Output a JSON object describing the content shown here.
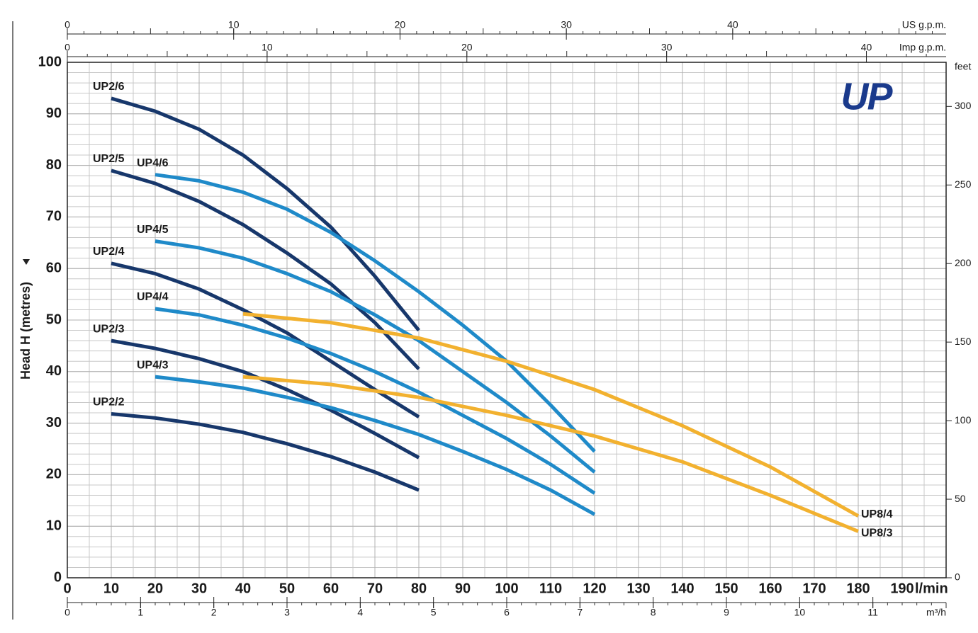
{
  "chart_data": {
    "type": "line",
    "y_label": "Head H  (metres)",
    "x_unit": "l/min",
    "logo": "UP",
    "xlim": [
      0,
      200
    ],
    "xticks": [
      0,
      10,
      20,
      30,
      40,
      50,
      60,
      70,
      80,
      90,
      100,
      110,
      120,
      130,
      140,
      150,
      160,
      170,
      180,
      190
    ],
    "ylim": [
      0,
      100
    ],
    "yticks": [
      0,
      10,
      20,
      30,
      40,
      50,
      60,
      70,
      80,
      90,
      100
    ],
    "y2_label": "feet",
    "y2lim": [
      0,
      328.08
    ],
    "y2ticks": [
      0,
      50,
      100,
      150,
      200,
      250,
      300
    ],
    "grid": true,
    "grid_minor_xstep": 5,
    "grid_minor_ystep": 2,
    "extra_x_axes": [
      {
        "label": "US g.p.m.",
        "position": "top",
        "lim": [
          0,
          52.83
        ],
        "ticks": [
          0,
          10,
          20,
          30,
          40
        ]
      },
      {
        "label": "Imp g.p.m.",
        "position": "top",
        "lim": [
          0,
          43.99
        ],
        "ticks": [
          0,
          10,
          20,
          30,
          40
        ]
      },
      {
        "label": "m³/h",
        "position": "bottom",
        "lim": [
          0,
          12
        ],
        "ticks": [
          0,
          1,
          2,
          3,
          4,
          5,
          6,
          7,
          8,
          9,
          10,
          11
        ]
      }
    ],
    "series": [
      {
        "name": "UP2/6",
        "color": "#17376b",
        "x": [
          10,
          20,
          30,
          40,
          50,
          60,
          70,
          80
        ],
        "values": [
          93,
          90.5,
          87,
          82,
          75.5,
          68,
          58.5,
          48
        ]
      },
      {
        "name": "UP2/5",
        "color": "#17376b",
        "x": [
          10,
          20,
          30,
          40,
          50,
          60,
          70,
          80
        ],
        "values": [
          79,
          76.5,
          73,
          68.5,
          63,
          57,
          49.5,
          40.5
        ]
      },
      {
        "name": "UP2/4",
        "color": "#17376b",
        "x": [
          10,
          20,
          30,
          40,
          50,
          60,
          70,
          80
        ],
        "values": [
          61,
          59,
          56,
          52,
          47.5,
          42,
          36.5,
          31.2
        ]
      },
      {
        "name": "UP2/3",
        "color": "#17376b",
        "x": [
          10,
          20,
          30,
          40,
          50,
          60,
          70,
          80
        ],
        "values": [
          46,
          44.5,
          42.5,
          40,
          36.5,
          32.5,
          28,
          23.3
        ]
      },
      {
        "name": "UP2/2",
        "color": "#17376b",
        "x": [
          10,
          20,
          30,
          40,
          50,
          60,
          70,
          80
        ],
        "values": [
          31.8,
          31,
          29.8,
          28.2,
          26,
          23.5,
          20.5,
          17
        ]
      },
      {
        "name": "UP4/6",
        "color": "#1f8ac9",
        "x": [
          20,
          30,
          40,
          50,
          60,
          70,
          80,
          90,
          100,
          110,
          120
        ],
        "values": [
          78.2,
          77,
          74.8,
          71.5,
          67,
          61.5,
          55.5,
          49,
          42,
          33.5,
          24.5
        ]
      },
      {
        "name": "UP4/5",
        "color": "#1f8ac9",
        "x": [
          20,
          30,
          40,
          50,
          60,
          70,
          80,
          90,
          100,
          110,
          120
        ],
        "values": [
          65.3,
          64,
          62,
          59,
          55.5,
          51,
          46,
          40,
          34,
          27.5,
          20.5
        ]
      },
      {
        "name": "UP4/4",
        "color": "#1f8ac9",
        "x": [
          20,
          30,
          40,
          50,
          60,
          70,
          80,
          90,
          100,
          110,
          120
        ],
        "values": [
          52.2,
          51,
          49,
          46.5,
          43.5,
          40,
          36,
          31.5,
          27,
          22,
          16.4
        ]
      },
      {
        "name": "UP4/3",
        "color": "#1f8ac9",
        "x": [
          20,
          30,
          40,
          50,
          60,
          70,
          80,
          90,
          100,
          110,
          120
        ],
        "values": [
          39,
          38,
          36.8,
          35,
          33,
          30.5,
          27.8,
          24.5,
          21,
          17,
          12.3
        ]
      },
      {
        "name": "UP8/4",
        "color": "#f2b12f",
        "x": [
          40,
          60,
          80,
          100,
          120,
          140,
          160,
          180
        ],
        "values": [
          51.2,
          49.5,
          46.5,
          42,
          36.5,
          29.5,
          21.5,
          12
        ]
      },
      {
        "name": "UP8/3",
        "color": "#f2b12f",
        "x": [
          40,
          60,
          80,
          100,
          120,
          140,
          160,
          180
        ],
        "values": [
          39,
          37.5,
          35,
          31.5,
          27.5,
          22.5,
          16,
          9
        ]
      }
    ]
  }
}
